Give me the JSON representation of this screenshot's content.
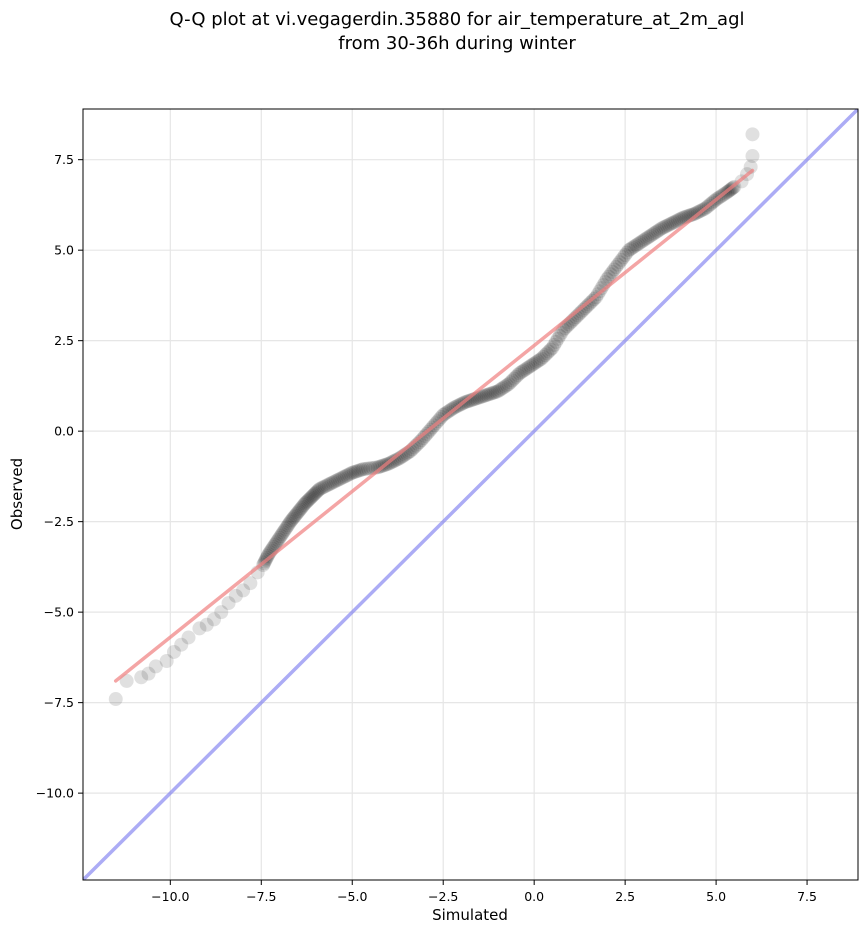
{
  "chart_data": {
    "type": "scatter",
    "title_line1": "Q-Q plot at vi.vegagerdin.35880 for air_temperature_at_2m_agl",
    "title_line2": "from 30-36h during winter",
    "xlabel": "Simulated",
    "ylabel": "Observed",
    "xlim": [
      -12.4,
      8.9
    ],
    "ylim": [
      -12.4,
      8.9
    ],
    "grid": true,
    "xticks": [
      -10.0,
      -7.5,
      -5.0,
      -2.5,
      0.0,
      2.5,
      5.0,
      7.5
    ],
    "yticks": [
      -10.0,
      -7.5,
      -5.0,
      -2.5,
      0.0,
      2.5,
      5.0,
      7.5
    ],
    "xtick_labels": [
      "−10.0",
      "−7.5",
      "−5.0",
      "−2.5",
      "0.0",
      "2.5",
      "5.0",
      "7.5"
    ],
    "ytick_labels": [
      "−10.0",
      "−7.5",
      "−5.0",
      "−2.5",
      "0.0",
      "2.5",
      "5.0",
      "7.5"
    ],
    "points_color": "#000000",
    "fit_line": {
      "color": "#f08080",
      "x": [
        -11.5,
        6.0
      ],
      "y": [
        -6.9,
        7.2
      ]
    },
    "identity_line": {
      "color": "#8080f0",
      "x": [
        -12.4,
        8.9
      ],
      "y": [
        -12.4,
        8.9
      ]
    },
    "qq_points": [
      [
        -11.5,
        -7.4
      ],
      [
        -11.2,
        -6.9
      ],
      [
        -10.8,
        -6.8
      ],
      [
        -10.6,
        -6.7
      ],
      [
        -10.4,
        -6.5
      ],
      [
        -10.1,
        -6.35
      ],
      [
        -9.9,
        -6.1
      ],
      [
        -9.7,
        -5.9
      ],
      [
        -9.5,
        -5.7
      ],
      [
        -9.2,
        -5.45
      ],
      [
        -9.0,
        -5.35
      ],
      [
        -8.8,
        -5.2
      ],
      [
        -8.6,
        -5.0
      ],
      [
        -8.4,
        -4.75
      ],
      [
        -8.2,
        -4.55
      ],
      [
        -8.0,
        -4.4
      ],
      [
        -7.8,
        -4.2
      ],
      [
        -7.6,
        -3.9
      ],
      [
        -7.45,
        -3.7
      ],
      [
        -7.3,
        -3.4
      ],
      [
        -7.1,
        -3.1
      ],
      [
        -6.9,
        -2.8
      ],
      [
        -6.7,
        -2.5
      ],
      [
        -6.5,
        -2.25
      ],
      [
        -6.3,
        -2.0
      ],
      [
        -6.1,
        -1.8
      ],
      [
        -5.9,
        -1.6
      ],
      [
        -5.6,
        -1.45
      ],
      [
        -5.3,
        -1.3
      ],
      [
        -5.0,
        -1.15
      ],
      [
        -4.7,
        -1.05
      ],
      [
        -4.3,
        -1.0
      ],
      [
        -4.0,
        -0.9
      ],
      [
        -3.7,
        -0.75
      ],
      [
        -3.4,
        -0.55
      ],
      [
        -3.1,
        -0.25
      ],
      [
        -2.8,
        0.1
      ],
      [
        -2.5,
        0.45
      ],
      [
        -2.2,
        0.65
      ],
      [
        -1.9,
        0.8
      ],
      [
        -1.6,
        0.9
      ],
      [
        -1.3,
        1.0
      ],
      [
        -1.0,
        1.1
      ],
      [
        -0.7,
        1.3
      ],
      [
        -0.4,
        1.6
      ],
      [
        -0.1,
        1.8
      ],
      [
        0.2,
        2.0
      ],
      [
        0.5,
        2.3
      ],
      [
        0.8,
        2.8
      ],
      [
        1.1,
        3.1
      ],
      [
        1.4,
        3.4
      ],
      [
        1.7,
        3.7
      ],
      [
        2.0,
        4.2
      ],
      [
        2.3,
        4.6
      ],
      [
        2.6,
        5.0
      ],
      [
        2.9,
        5.2
      ],
      [
        3.2,
        5.4
      ],
      [
        3.5,
        5.6
      ],
      [
        3.8,
        5.75
      ],
      [
        4.1,
        5.9
      ],
      [
        4.4,
        6.0
      ],
      [
        4.7,
        6.15
      ],
      [
        5.0,
        6.4
      ],
      [
        5.3,
        6.6
      ],
      [
        5.5,
        6.75
      ],
      [
        5.7,
        6.9
      ],
      [
        5.85,
        7.1
      ],
      [
        5.95,
        7.3
      ],
      [
        6.0,
        7.6
      ],
      [
        6.0,
        8.2
      ]
    ]
  }
}
